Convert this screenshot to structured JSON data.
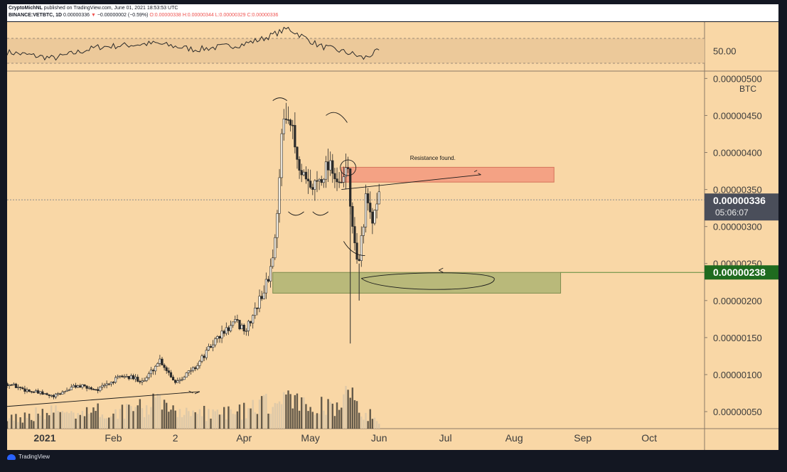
{
  "header": {
    "author": "CryptoMichNL",
    "published": "published on TradingView.com, June 01, 2021 18:53:53 UTC",
    "symbol": "BINANCE:VETBTC, 1D",
    "last": "0.00000336",
    "change_arrow": "▼",
    "change": "−0.00000002 (−0.59%)",
    "open": "O:0.00000338",
    "high": "H:0.00000344",
    "low": "L:0.00000329",
    "close": "C:0.00000336"
  },
  "footer": {
    "brand": "TradingView"
  },
  "colors": {
    "background": "#f9d7a6",
    "resistance_zone": "#f4a284",
    "support_zone": "#b9b97a",
    "support_label": "#1f6b1f",
    "last_price_label": "#4a4e5a",
    "candles": "#2a2a2a"
  },
  "chart_data": {
    "type": "candlestick",
    "unit": "BTC",
    "y_ticks": [
      "0.00000500",
      "0.00000450",
      "0.00000400",
      "0.00000350",
      "0.00000300",
      "0.00000250",
      "0.00000200",
      "0.00000150",
      "0.00000100",
      "0.00000050"
    ],
    "y_tick_values": [
      5e-06,
      4.5e-06,
      4e-06,
      3.5e-06,
      3e-06,
      2.5e-06,
      2e-06,
      1.5e-06,
      1e-06,
      5e-07
    ],
    "ylim": [
      2.7e-07,
      5.09e-06
    ],
    "x_ticks": [
      "2021",
      "Feb",
      "2",
      "Apr",
      "May",
      "Jun",
      "Jul",
      "Aug",
      "Sep",
      "Oct"
    ],
    "x_tick_dates": [
      "2021-01-01",
      "2021-02-01",
      "2021-03-01",
      "2021-04-01",
      "2021-05-01",
      "2021-06-01",
      "2021-07-01",
      "2021-08-01",
      "2021-09-01",
      "2021-10-01"
    ],
    "xlim": [
      "2020-12-15",
      "2021-10-26"
    ],
    "last_price": {
      "value": 3.36e-06,
      "label": "0.00000336",
      "countdown": "05:06:07"
    },
    "support_price": {
      "value": 2.38e-06,
      "label": "0.00000238"
    },
    "resistance_zone": {
      "low": 3.6e-06,
      "high": 3.8e-06,
      "start": "2021-05-15",
      "end": "2021-08-19"
    },
    "support_zone": {
      "low": 2.1e-06,
      "high": 2.38e-06,
      "start": "2021-04-14",
      "end": "2021-08-22"
    },
    "annotation": "Resistance found.",
    "price_anchors": [
      [
        "2020-12-15",
        8.8e-07
      ],
      [
        "2020-12-25",
        7.8e-07
      ],
      [
        "2021-01-05",
        7e-07
      ],
      [
        "2021-01-15",
        8.5e-07
      ],
      [
        "2021-01-25",
        8e-07
      ],
      [
        "2021-02-05",
        9.8e-07
      ],
      [
        "2021-02-15",
        9.2e-07
      ],
      [
        "2021-02-22",
        1.2e-06
      ],
      [
        "2021-03-01",
        9e-07
      ],
      [
        "2021-03-10",
        1.1e-06
      ],
      [
        "2021-03-20",
        1.5e-06
      ],
      [
        "2021-03-28",
        1.7e-06
      ],
      [
        "2021-04-02",
        1.6e-06
      ],
      [
        "2021-04-08",
        2e-06
      ],
      [
        "2021-04-12",
        2.3e-06
      ],
      [
        "2021-04-15",
        2.8e-06
      ],
      [
        "2021-04-18",
        4.2e-06
      ],
      [
        "2021-04-21",
        4.6e-06
      ],
      [
        "2021-04-26",
        3.7e-06
      ],
      [
        "2021-05-01",
        3.5e-06
      ],
      [
        "2021-05-06",
        3.7e-06
      ],
      [
        "2021-05-10",
        3.9e-06
      ],
      [
        "2021-05-14",
        3.5e-06
      ],
      [
        "2021-05-18",
        3.8e-06
      ],
      [
        "2021-05-20",
        2.9e-06
      ],
      [
        "2021-05-23",
        2.5e-06
      ],
      [
        "2021-05-26",
        3.4e-06
      ],
      [
        "2021-05-29",
        3e-06
      ],
      [
        "2021-06-01",
        3.36e-06
      ]
    ],
    "volume_profile": [
      [
        "2020-12-15",
        0.3
      ],
      [
        "2021-01-10",
        0.55
      ],
      [
        "2021-02-01",
        0.5
      ],
      [
        "2021-02-22",
        0.75
      ],
      [
        "2021-03-10",
        0.45
      ],
      [
        "2021-04-01",
        0.55
      ],
      [
        "2021-04-20",
        0.85
      ],
      [
        "2021-05-10",
        0.65
      ],
      [
        "2021-05-19",
        1.0
      ],
      [
        "2021-05-25",
        0.5
      ],
      [
        "2021-06-01",
        0.25
      ]
    ],
    "rsi": {
      "tick": "50.00",
      "level": 50,
      "band": [
        30,
        70
      ],
      "anchors": [
        [
          "2020-12-15",
          48
        ],
        [
          "2021-01-05",
          38
        ],
        [
          "2021-01-25",
          56
        ],
        [
          "2021-02-20",
          62
        ],
        [
          "2021-03-10",
          52
        ],
        [
          "2021-03-31",
          60
        ],
        [
          "2021-04-10",
          70
        ],
        [
          "2021-04-21",
          86
        ],
        [
          "2021-05-05",
          58
        ],
        [
          "2021-05-20",
          45
        ],
        [
          "2021-05-25",
          38
        ],
        [
          "2021-06-01",
          50
        ]
      ]
    }
  }
}
